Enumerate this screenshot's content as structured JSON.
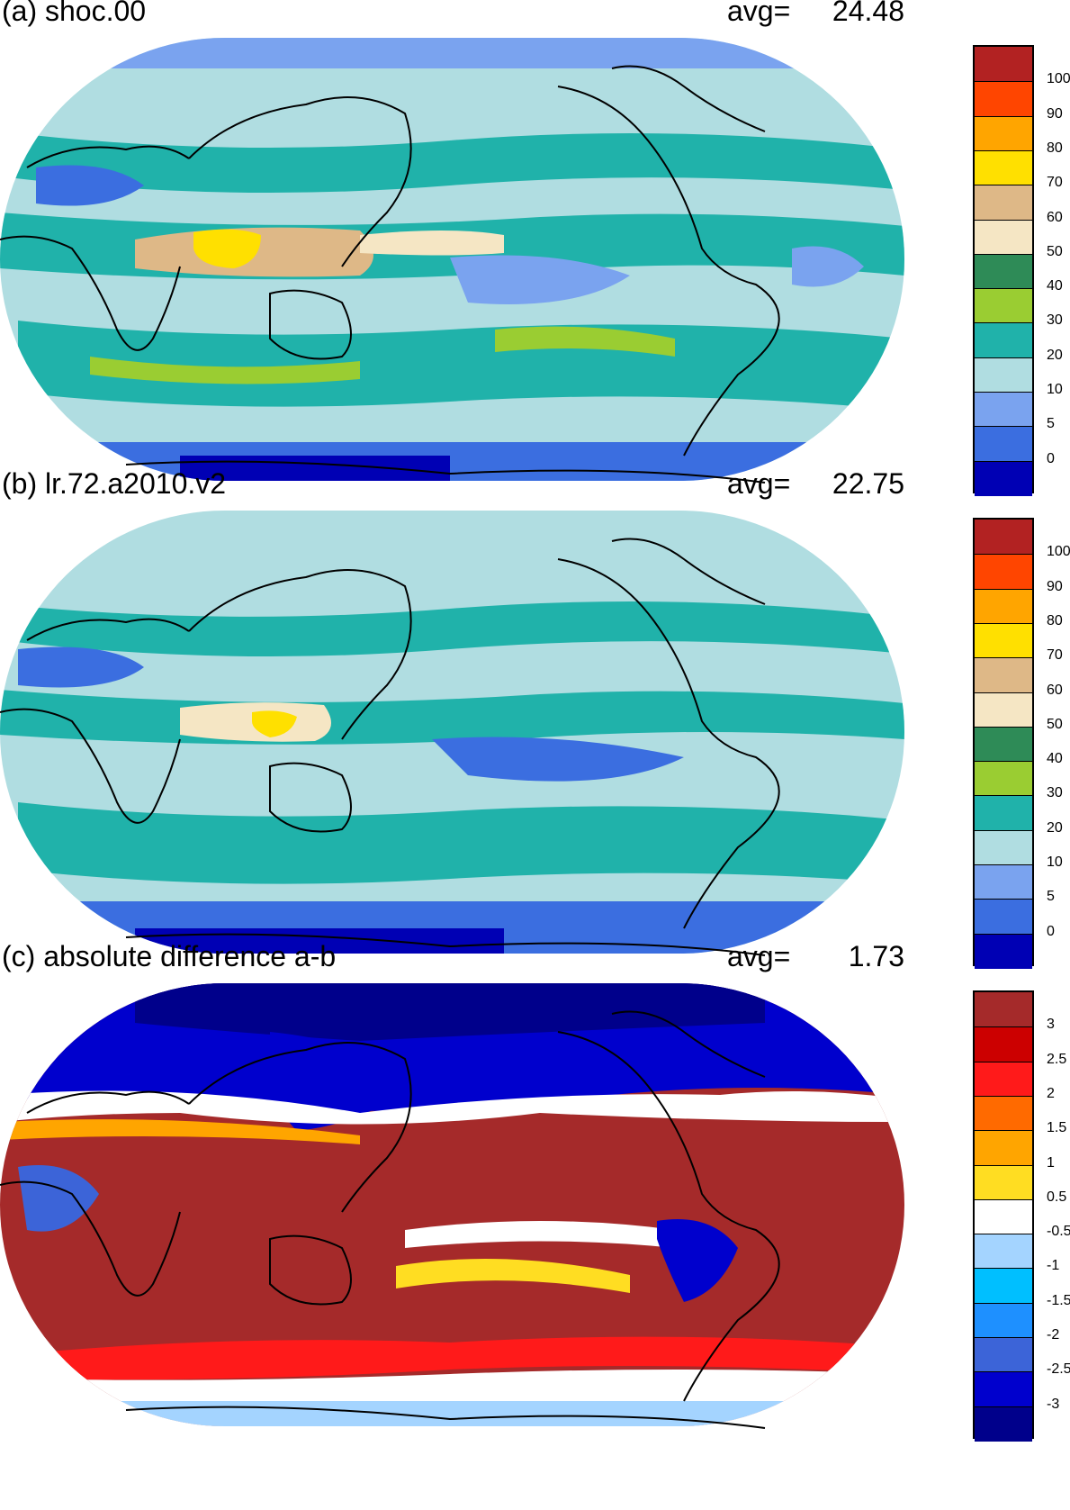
{
  "panels": [
    {
      "title": "(a) shoc.00",
      "avg_label": "avg=",
      "avg_value": "24.48",
      "colors": [
        "#0000b4",
        "#3b6ee0",
        "#7aa3ef",
        "#b0dde1",
        "#20b2aa",
        "#9acd32",
        "#2e8b57",
        "#f5e6c4",
        "#deb887",
        "#ffe000",
        "#ffa500",
        "#ff4500",
        "#b22222"
      ],
      "labels": [
        "0",
        "5",
        "10",
        "20",
        "30",
        "40",
        "50",
        "60",
        "70",
        "80",
        "90",
        "100"
      ]
    },
    {
      "title": "(b) lr.72.a2010.v2",
      "avg_label": "avg=",
      "avg_value": "22.75",
      "colors": [
        "#0000b4",
        "#3b6ee0",
        "#7aa3ef",
        "#b0dde1",
        "#20b2aa",
        "#9acd32",
        "#2e8b57",
        "#f5e6c4",
        "#deb887",
        "#ffe000",
        "#ffa500",
        "#ff4500",
        "#b22222"
      ],
      "labels": [
        "0",
        "5",
        "10",
        "20",
        "30",
        "40",
        "50",
        "60",
        "70",
        "80",
        "90",
        "100"
      ]
    },
    {
      "title": "(c) absolute difference a-b",
      "avg_label": "avg=",
      "avg_value": "1.73",
      "colors": [
        "#00008b",
        "#0000cd",
        "#3c64d8",
        "#1e90ff",
        "#00bfff",
        "#a4d4ff",
        "#ffffff",
        "#ffdd22",
        "#ffa500",
        "#ff6a00",
        "#ff1a1a",
        "#cc0000",
        "#a52a2a"
      ],
      "labels": [
        "-3",
        "-2.5",
        "-2",
        "-1.5",
        "-1",
        "-0.5",
        "0.5",
        "1",
        "1.5",
        "2",
        "2.5",
        "3"
      ]
    }
  ]
}
